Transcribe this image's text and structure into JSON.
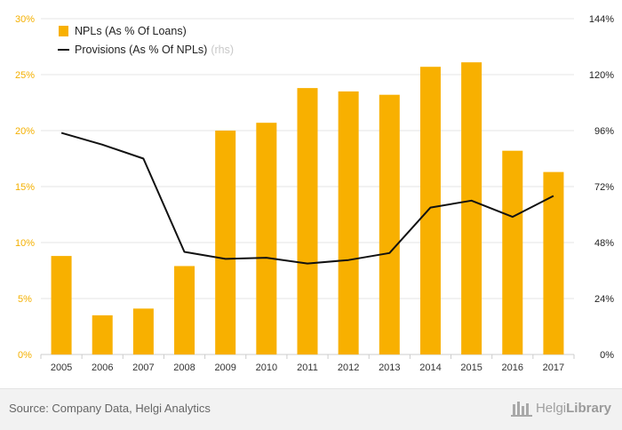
{
  "chart_data": {
    "type": "bar",
    "categories": [
      "2005",
      "2006",
      "2007",
      "2008",
      "2009",
      "2010",
      "2011",
      "2012",
      "2013",
      "2014",
      "2015",
      "2016",
      "2017"
    ],
    "series": [
      {
        "name": "NPLs (As % Of Loans)",
        "kind": "bar",
        "axis": "left",
        "color": "#f8b000",
        "values": [
          8.8,
          3.5,
          4.1,
          7.9,
          20.0,
          20.7,
          23.8,
          23.5,
          23.2,
          25.7,
          26.1,
          18.2,
          16.3
        ]
      },
      {
        "name": "Provisions (As % Of NPLs)",
        "name_suffix": "(rhs)",
        "kind": "line",
        "axis": "right",
        "color": "#111111",
        "values": [
          95,
          90,
          84,
          44,
          41,
          41.5,
          39,
          40.5,
          43.5,
          63,
          66,
          59,
          68
        ]
      }
    ],
    "y_left": {
      "ylim": [
        0,
        30
      ],
      "ticks": [
        0,
        5,
        10,
        15,
        20,
        25,
        30
      ],
      "tick_labels": [
        "0%",
        "5%",
        "10%",
        "15%",
        "20%",
        "25%",
        "30%"
      ],
      "color": "#f4b000"
    },
    "y_right": {
      "ylim": [
        0,
        144
      ],
      "ticks": [
        0,
        24,
        48,
        72,
        96,
        120,
        144
      ],
      "tick_labels": [
        "0%",
        "24%",
        "48%",
        "72%",
        "96%",
        "120%",
        "144%"
      ],
      "color": "#222222"
    },
    "grid": true,
    "legend_position": "top-left",
    "title": "",
    "xlabel": "",
    "ylabel": ""
  },
  "footer": {
    "source": "Source: Company Data, Helgi Analytics",
    "brand_light": "Helgi",
    "brand_bold": "Library"
  }
}
